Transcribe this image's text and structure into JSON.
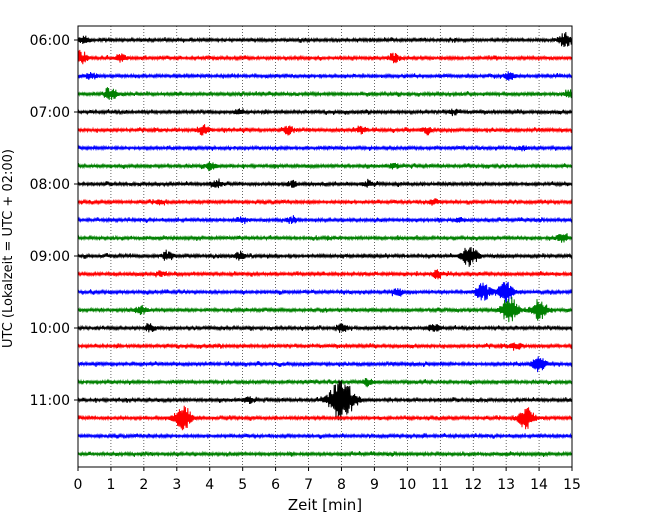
{
  "chart_data": {
    "type": "line",
    "title": "",
    "xlabel": "Zeit  [min]",
    "ylabel": "UTC (Lokalzeit = UTC + 02:00)",
    "xlim": [
      0,
      15
    ],
    "x_ticks": [
      0,
      1,
      2,
      3,
      4,
      5,
      6,
      7,
      8,
      9,
      10,
      11,
      12,
      13,
      14,
      15
    ],
    "y_tick_labels": [
      "06:00",
      "07:00",
      "08:00",
      "09:00",
      "10:00",
      "11:00"
    ],
    "y_tick_rows": [
      0,
      4,
      8,
      12,
      16,
      20
    ],
    "vertical_grid": true,
    "grid_style": "dotted",
    "row_interval_minutes": 15,
    "trace_colors": [
      "#000000",
      "#ff0000",
      "#0000ff",
      "#008000"
    ],
    "rows": [
      {
        "time": "06:00",
        "color": "#000000",
        "bursts": [
          [
            0.2,
            0.5
          ],
          [
            14.8,
            1.0
          ]
        ]
      },
      {
        "time": "06:15",
        "color": "#ff0000",
        "bursts": [
          [
            0.05,
            1.0
          ],
          [
            1.3,
            0.5
          ],
          [
            9.6,
            0.6
          ]
        ]
      },
      {
        "time": "06:30",
        "color": "#0000ff",
        "bursts": [
          [
            0.4,
            0.5
          ],
          [
            13.1,
            0.5
          ]
        ]
      },
      {
        "time": "06:45",
        "color": "#008000",
        "bursts": [
          [
            1.0,
            0.8
          ],
          [
            14.9,
            0.6
          ]
        ]
      },
      {
        "time": "07:00",
        "color": "#000000",
        "bursts": [
          [
            4.9,
            0.4
          ],
          [
            11.4,
            0.4
          ]
        ]
      },
      {
        "time": "07:15",
        "color": "#ff0000",
        "bursts": [
          [
            3.8,
            0.7
          ],
          [
            6.4,
            0.6
          ],
          [
            8.6,
            0.5
          ],
          [
            10.6,
            0.4
          ]
        ]
      },
      {
        "time": "07:30",
        "color": "#0000ff",
        "bursts": [
          [
            13.5,
            0.3
          ]
        ]
      },
      {
        "time": "07:45",
        "color": "#008000",
        "bursts": [
          [
            4.0,
            0.6
          ],
          [
            9.6,
            0.4
          ]
        ]
      },
      {
        "time": "08:00",
        "color": "#000000",
        "bursts": [
          [
            4.2,
            0.5
          ],
          [
            6.5,
            0.4
          ],
          [
            8.8,
            0.4
          ]
        ]
      },
      {
        "time": "08:15",
        "color": "#ff0000",
        "bursts": [
          [
            2.5,
            0.4
          ],
          [
            10.8,
            0.4
          ]
        ]
      },
      {
        "time": "08:30",
        "color": "#0000ff",
        "bursts": [
          [
            5.0,
            0.5
          ],
          [
            6.5,
            0.4
          ],
          [
            11.6,
            0.3
          ]
        ]
      },
      {
        "time": "08:45",
        "color": "#008000",
        "bursts": [
          [
            14.7,
            0.6
          ]
        ]
      },
      {
        "time": "09:00",
        "color": "#000000",
        "bursts": [
          [
            2.7,
            0.6
          ],
          [
            4.9,
            0.5
          ],
          [
            11.9,
            1.5
          ]
        ]
      },
      {
        "time": "09:15",
        "color": "#ff0000",
        "bursts": [
          [
            2.5,
            0.3
          ],
          [
            10.9,
            0.6
          ]
        ]
      },
      {
        "time": "09:30",
        "color": "#0000ff",
        "bursts": [
          [
            9.7,
            0.5
          ],
          [
            12.3,
            1.2
          ],
          [
            13.0,
            1.4
          ]
        ]
      },
      {
        "time": "09:45",
        "color": "#008000",
        "bursts": [
          [
            1.9,
            0.6
          ],
          [
            13.1,
            1.8
          ],
          [
            14.0,
            1.5
          ]
        ]
      },
      {
        "time": "10:00",
        "color": "#000000",
        "bursts": [
          [
            2.2,
            0.5
          ],
          [
            8.0,
            0.6
          ],
          [
            10.8,
            0.6
          ]
        ]
      },
      {
        "time": "10:15",
        "color": "#ff0000",
        "bursts": [
          [
            13.3,
            0.5
          ]
        ]
      },
      {
        "time": "10:30",
        "color": "#0000ff",
        "bursts": [
          [
            14.0,
            1.0
          ]
        ]
      },
      {
        "time": "10:45",
        "color": "#008000",
        "bursts": [
          [
            8.8,
            0.5
          ]
        ]
      },
      {
        "time": "11:00",
        "color": "#000000",
        "bursts": [
          [
            5.2,
            0.5
          ],
          [
            8.0,
            3.0
          ]
        ]
      },
      {
        "time": "11:15",
        "color": "#ff0000",
        "bursts": [
          [
            3.2,
            1.6
          ],
          [
            13.6,
            1.5
          ]
        ]
      },
      {
        "time": "11:30",
        "color": "#0000ff",
        "bursts": []
      },
      {
        "time": "11:45",
        "color": "#008000",
        "bursts": []
      }
    ]
  }
}
